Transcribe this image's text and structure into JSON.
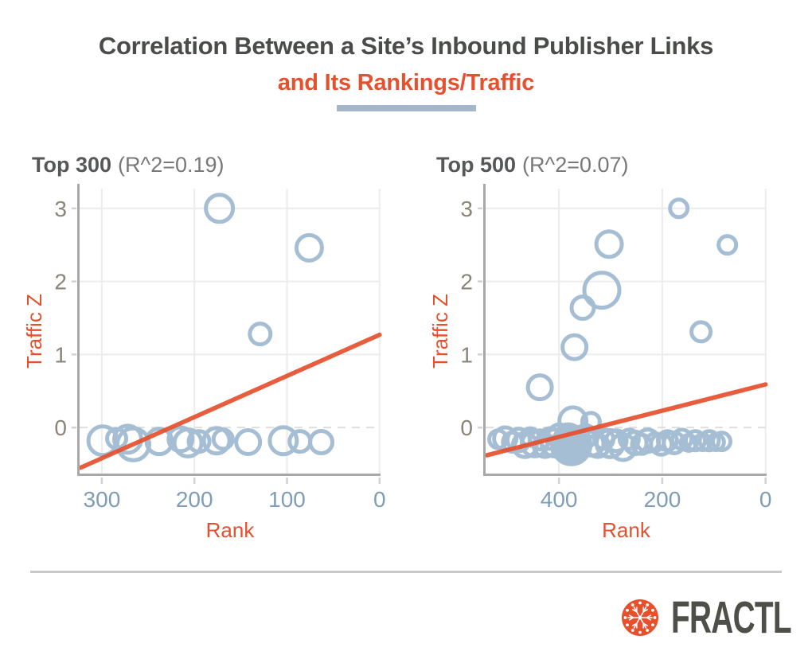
{
  "header": {
    "title": "Correlation Between a Site’s Inbound Publisher Links",
    "subtitle": "and Its Rankings/Traffic"
  },
  "footer": {
    "brand": "FRACTL"
  },
  "colors": {
    "title": "#494c48",
    "accent_orange": "#e5502d",
    "bubble_blue": "#a6bed3",
    "x_tick_blue": "#7e9db8",
    "y_tick_taupe": "#8b8478",
    "panel_title_dark": "#565758",
    "panel_title_light": "#77787a",
    "grid": "#ececec",
    "zero_dash": "#dedede",
    "spine": "#a8a8a8",
    "tick_mark": "#d2d2d2",
    "underline_blue": "#a4b8c9",
    "divider": "#c9c9c9",
    "brand_text": "#4e4f48",
    "logo_orange": "#e8502c"
  },
  "chart_data": [
    {
      "type": "scatter",
      "panel_title": "Top 300",
      "panel_subtitle": "(R^2=0.19)",
      "xlabel": "Rank",
      "ylabel": "Traffic Z",
      "x_ticks": [
        300,
        200,
        100,
        0
      ],
      "y_ticks": [
        0,
        1,
        2,
        3
      ],
      "x_domain": [
        324,
        -1
      ],
      "y_domain": [
        -0.63,
        3.27
      ],
      "x_axis_reversed": true,
      "grid": true,
      "zero_line_dashed": true,
      "trend": {
        "x1": 323,
        "y1": -0.55,
        "x2": 0,
        "y2": 1.27
      },
      "points": [
        [
          173,
          3.0,
          17
        ],
        [
          76,
          2.46,
          16
        ],
        [
          129,
          1.28,
          13
        ],
        [
          299,
          -0.18,
          18
        ],
        [
          284,
          -0.15,
          12
        ],
        [
          272,
          -0.16,
          17
        ],
        [
          266,
          -0.23,
          20
        ],
        [
          238,
          -0.19,
          16
        ],
        [
          215,
          -0.16,
          15
        ],
        [
          207,
          -0.21,
          17
        ],
        [
          195,
          -0.19,
          13
        ],
        [
          176,
          -0.18,
          16
        ],
        [
          169,
          -0.16,
          12
        ],
        [
          142,
          -0.2,
          15
        ],
        [
          104,
          -0.18,
          17
        ],
        [
          86,
          -0.19,
          13
        ],
        [
          63,
          -0.2,
          14
        ]
      ]
    },
    {
      "type": "scatter",
      "panel_title": "Top 500",
      "panel_subtitle": "(R^2=0.07)",
      "xlabel": "Rank",
      "ylabel": "Traffic Z",
      "x_ticks": [
        400,
        200,
        0
      ],
      "y_ticks": [
        0,
        1,
        2,
        3
      ],
      "x_domain": [
        542,
        -2
      ],
      "y_domain": [
        -0.63,
        3.27
      ],
      "x_axis_reversed": true,
      "grid": true,
      "zero_line_dashed": true,
      "trend": {
        "x1": 540,
        "y1": -0.38,
        "x2": 0,
        "y2": 0.59
      },
      "points": [
        [
          168,
          3.0,
          11
        ],
        [
          303,
          2.51,
          16
        ],
        [
          74,
          2.5,
          11
        ],
        [
          317,
          1.88,
          22
        ],
        [
          354,
          1.64,
          14
        ],
        [
          125,
          1.31,
          12
        ],
        [
          370,
          1.1,
          15
        ],
        [
          437,
          0.55,
          15
        ],
        [
          518,
          -0.16,
          11
        ],
        [
          504,
          -0.15,
          14
        ],
        [
          490,
          -0.2,
          12
        ],
        [
          478,
          -0.17,
          14
        ],
        [
          466,
          -0.24,
          15
        ],
        [
          456,
          -0.13,
          11
        ],
        [
          447,
          -0.22,
          16
        ],
        [
          437,
          -0.17,
          12
        ],
        [
          427,
          -0.25,
          14
        ],
        [
          417,
          -0.15,
          13
        ],
        [
          408,
          -0.21,
          17
        ],
        [
          399,
          -0.11,
          14
        ],
        [
          390,
          -0.27,
          15
        ],
        [
          382,
          -0.13,
          16
        ],
        [
          376,
          -0.24,
          24,
          1
        ],
        [
          373,
          0.09,
          17
        ],
        [
          360,
          -0.18,
          13
        ],
        [
          349,
          -0.12,
          14
        ],
        [
          338,
          0.08,
          11
        ],
        [
          337,
          -0.22,
          15
        ],
        [
          325,
          -0.25,
          14
        ],
        [
          313,
          -0.16,
          12
        ],
        [
          301,
          -0.22,
          17
        ],
        [
          289,
          -0.18,
          13
        ],
        [
          276,
          -0.27,
          16
        ],
        [
          264,
          -0.16,
          12
        ],
        [
          252,
          -0.21,
          14
        ],
        [
          240,
          -0.23,
          12
        ],
        [
          228,
          -0.18,
          14
        ],
        [
          214,
          -0.2,
          11
        ],
        [
          202,
          -0.23,
          13
        ],
        [
          190,
          -0.18,
          12
        ],
        [
          177,
          -0.21,
          13
        ],
        [
          162,
          -0.16,
          12
        ],
        [
          149,
          -0.21,
          10
        ],
        [
          136,
          -0.18,
          12
        ],
        [
          122,
          -0.2,
          10
        ],
        [
          109,
          -0.18,
          12
        ],
        [
          96,
          -0.2,
          10
        ],
        [
          85,
          -0.19,
          11
        ]
      ]
    }
  ]
}
